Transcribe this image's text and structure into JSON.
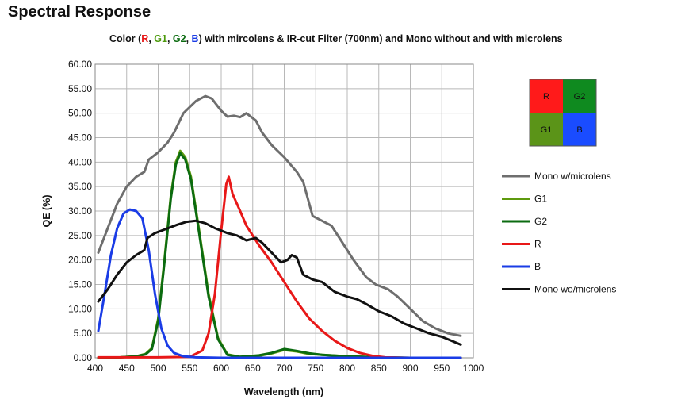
{
  "title": "Spectral Response",
  "subtitle_parts": [
    {
      "text": "Color (",
      "color": "#111111"
    },
    {
      "text": "R",
      "color": "#e81818"
    },
    {
      "text": ", ",
      "color": "#111111"
    },
    {
      "text": "G1",
      "color": "#4c9a0c"
    },
    {
      "text": ", ",
      "color": "#111111"
    },
    {
      "text": "G2",
      "color": "#0b6b10"
    },
    {
      "text": ", ",
      "color": "#111111"
    },
    {
      "text": "B",
      "color": "#1a3ce6"
    },
    {
      "text": ")  with mircolens & IR-cut Filter (700nm) and Mono without and with microlens",
      "color": "#111111"
    }
  ],
  "bayer_mosaic": {
    "cells": [
      {
        "label": "R",
        "color": "#ff1a1a"
      },
      {
        "label": "G2",
        "color": "#0f8a1f"
      },
      {
        "label": "G1",
        "color": "#5b9418"
      },
      {
        "label": "B",
        "color": "#1a4cff"
      }
    ]
  },
  "chart_data": {
    "type": "line",
    "xlabel": "Wavelength (nm)",
    "ylabel": "QE (%)",
    "xlim": [
      400,
      1000
    ],
    "ylim": [
      0,
      60
    ],
    "xticks": [
      "400",
      "450",
      "500",
      "550",
      "600",
      "650",
      "700",
      "750",
      "800",
      "850",
      "900",
      "950",
      "1000"
    ],
    "yticks": [
      "0.00",
      "5.00",
      "10.00",
      "15.00",
      "20.00",
      "25.00",
      "30.00",
      "35.00",
      "40.00",
      "45.00",
      "50.00",
      "55.00",
      "60.00"
    ],
    "grid": true,
    "legend_position": "right",
    "series": [
      {
        "name": "Mono w/microlens",
        "color": "#6e6e6e",
        "points": [
          [
            405,
            21.5
          ],
          [
            420,
            26.5
          ],
          [
            435,
            31.5
          ],
          [
            450,
            35.0
          ],
          [
            465,
            37.0
          ],
          [
            478,
            38.0
          ],
          [
            485,
            40.5
          ],
          [
            500,
            42.0
          ],
          [
            515,
            44.0
          ],
          [
            525,
            46.0
          ],
          [
            540,
            50.0
          ],
          [
            560,
            52.5
          ],
          [
            575,
            53.5
          ],
          [
            585,
            53.0
          ],
          [
            600,
            50.5
          ],
          [
            610,
            49.3
          ],
          [
            620,
            49.5
          ],
          [
            630,
            49.2
          ],
          [
            640,
            50.0
          ],
          [
            655,
            48.5
          ],
          [
            665,
            46.0
          ],
          [
            680,
            43.5
          ],
          [
            700,
            41.0
          ],
          [
            720,
            38.0
          ],
          [
            730,
            36.0
          ],
          [
            745,
            29.0
          ],
          [
            760,
            28.0
          ],
          [
            775,
            27.0
          ],
          [
            790,
            24.0
          ],
          [
            810,
            20.0
          ],
          [
            830,
            16.5
          ],
          [
            845,
            15.0
          ],
          [
            865,
            14.0
          ],
          [
            880,
            12.5
          ],
          [
            900,
            10.0
          ],
          [
            920,
            7.5
          ],
          [
            940,
            6.0
          ],
          [
            960,
            5.0
          ],
          [
            980,
            4.5
          ]
        ]
      },
      {
        "name": "G1",
        "color": "#5e9a0e",
        "points": [
          [
            405,
            0.0
          ],
          [
            440,
            0.1
          ],
          [
            465,
            0.3
          ],
          [
            480,
            0.8
          ],
          [
            490,
            2.0
          ],
          [
            500,
            8.0
          ],
          [
            510,
            20.0
          ],
          [
            520,
            33.0
          ],
          [
            528,
            40.0
          ],
          [
            535,
            42.3
          ],
          [
            543,
            41.0
          ],
          [
            552,
            37.0
          ],
          [
            565,
            26.0
          ],
          [
            580,
            13.0
          ],
          [
            595,
            4.0
          ],
          [
            610,
            0.7
          ],
          [
            630,
            0.2
          ],
          [
            660,
            0.4
          ],
          [
            680,
            0.9
          ],
          [
            700,
            1.6
          ],
          [
            720,
            1.3
          ],
          [
            740,
            0.8
          ],
          [
            760,
            0.6
          ],
          [
            800,
            0.3
          ],
          [
            850,
            0.1
          ],
          [
            900,
            0.0
          ],
          [
            980,
            0.0
          ]
        ]
      },
      {
        "name": "G2",
        "color": "#0b6b10",
        "points": [
          [
            405,
            0.0
          ],
          [
            440,
            0.1
          ],
          [
            465,
            0.3
          ],
          [
            480,
            0.7
          ],
          [
            490,
            1.8
          ],
          [
            500,
            7.5
          ],
          [
            510,
            19.5
          ],
          [
            520,
            32.5
          ],
          [
            528,
            39.5
          ],
          [
            535,
            41.8
          ],
          [
            543,
            40.5
          ],
          [
            552,
            36.5
          ],
          [
            565,
            25.5
          ],
          [
            580,
            12.5
          ],
          [
            595,
            3.8
          ],
          [
            610,
            0.6
          ],
          [
            630,
            0.2
          ],
          [
            660,
            0.5
          ],
          [
            680,
            1.0
          ],
          [
            700,
            1.8
          ],
          [
            720,
            1.4
          ],
          [
            740,
            0.9
          ],
          [
            760,
            0.6
          ],
          [
            800,
            0.3
          ],
          [
            850,
            0.1
          ],
          [
            900,
            0.0
          ],
          [
            980,
            0.0
          ]
        ]
      },
      {
        "name": "R",
        "color": "#e81818",
        "points": [
          [
            405,
            0.1
          ],
          [
            500,
            0.1
          ],
          [
            550,
            0.2
          ],
          [
            570,
            1.5
          ],
          [
            580,
            5.0
          ],
          [
            590,
            13.0
          ],
          [
            600,
            26.0
          ],
          [
            608,
            35.5
          ],
          [
            612,
            37.0
          ],
          [
            618,
            33.5
          ],
          [
            630,
            30.0
          ],
          [
            640,
            27.0
          ],
          [
            660,
            23.0
          ],
          [
            680,
            19.5
          ],
          [
            700,
            15.5
          ],
          [
            720,
            11.5
          ],
          [
            740,
            8.0
          ],
          [
            760,
            5.5
          ],
          [
            780,
            3.5
          ],
          [
            800,
            2.0
          ],
          [
            820,
            1.0
          ],
          [
            840,
            0.4
          ],
          [
            860,
            0.1
          ],
          [
            900,
            0.0
          ],
          [
            980,
            0.0
          ]
        ]
      },
      {
        "name": "B",
        "color": "#1a3ce6",
        "points": [
          [
            405,
            5.5
          ],
          [
            415,
            13.0
          ],
          [
            425,
            21.0
          ],
          [
            435,
            26.5
          ],
          [
            445,
            29.5
          ],
          [
            455,
            30.3
          ],
          [
            465,
            30.0
          ],
          [
            475,
            28.5
          ],
          [
            485,
            22.0
          ],
          [
            495,
            13.0
          ],
          [
            505,
            6.0
          ],
          [
            515,
            2.5
          ],
          [
            525,
            1.0
          ],
          [
            540,
            0.3
          ],
          [
            560,
            0.1
          ],
          [
            600,
            0.0
          ],
          [
            980,
            0.0
          ]
        ]
      },
      {
        "name": "Mono wo/microlens",
        "color": "#111111",
        "points": [
          [
            405,
            11.5
          ],
          [
            420,
            14.0
          ],
          [
            435,
            17.0
          ],
          [
            450,
            19.5
          ],
          [
            465,
            21.0
          ],
          [
            478,
            22.0
          ],
          [
            483,
            24.5
          ],
          [
            495,
            25.5
          ],
          [
            510,
            26.2
          ],
          [
            530,
            27.2
          ],
          [
            545,
            27.8
          ],
          [
            560,
            28.0
          ],
          [
            575,
            27.5
          ],
          [
            590,
            26.5
          ],
          [
            610,
            25.5
          ],
          [
            625,
            25.0
          ],
          [
            640,
            24.0
          ],
          [
            655,
            24.5
          ],
          [
            665,
            23.5
          ],
          [
            680,
            21.5
          ],
          [
            695,
            19.5
          ],
          [
            705,
            20.0
          ],
          [
            712,
            21.0
          ],
          [
            720,
            20.5
          ],
          [
            730,
            17.0
          ],
          [
            745,
            16.0
          ],
          [
            760,
            15.5
          ],
          [
            780,
            13.5
          ],
          [
            800,
            12.5
          ],
          [
            815,
            12.0
          ],
          [
            830,
            11.0
          ],
          [
            850,
            9.5
          ],
          [
            870,
            8.5
          ],
          [
            890,
            7.0
          ],
          [
            910,
            6.0
          ],
          [
            930,
            5.0
          ],
          [
            950,
            4.3
          ],
          [
            965,
            3.5
          ],
          [
            980,
            2.7
          ]
        ]
      }
    ]
  }
}
